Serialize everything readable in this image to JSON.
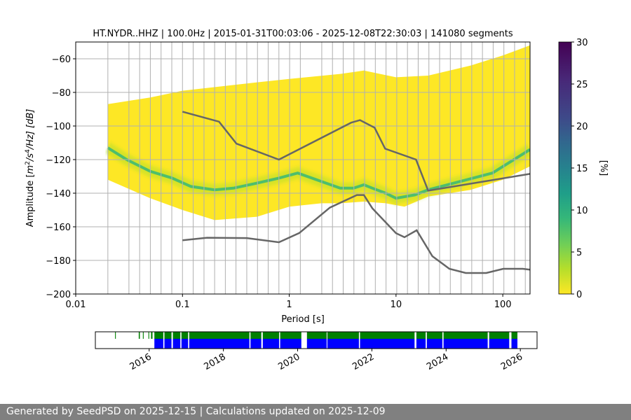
{
  "chart_data": [
    {
      "type": "heatmap",
      "title": "HT.NYDR..HHZ | 100.0Hz | 2015-01-31T00:03:06 - 2025-12-08T22:30:03 | 141080 segments",
      "xlabel": "Period [s]",
      "ylabel_prefix": "Amplitude [",
      "ylabel_m": "m",
      "ylabel_exp2": "2",
      "ylabel_mid": "/s",
      "ylabel_exp4": "4",
      "ylabel_suffix": "/Hz] [dB]",
      "x_scale": "log",
      "xlim": [
        0.01,
        180
      ],
      "ylim": [
        -200,
        -50
      ],
      "x_ticks": [
        {
          "value": 0.01,
          "label": "0.01"
        },
        {
          "value": 0.1,
          "label": "0.1"
        },
        {
          "value": 1,
          "label": "1"
        },
        {
          "value": 10,
          "label": "10"
        },
        {
          "value": 100,
          "label": "100"
        }
      ],
      "y_ticks": [
        {
          "value": -60,
          "label": "−60"
        },
        {
          "value": -80,
          "label": "−80"
        },
        {
          "value": -100,
          "label": "−100"
        },
        {
          "value": -120,
          "label": "−120"
        },
        {
          "value": -140,
          "label": "−140"
        },
        {
          "value": -160,
          "label": "−160"
        },
        {
          "value": -180,
          "label": "−180"
        },
        {
          "value": -200,
          "label": "−200"
        }
      ],
      "grid": true,
      "period_gridlines": [
        0.02,
        0.0315,
        0.0397,
        0.05,
        0.063,
        0.0794,
        0.1,
        0.126,
        0.159,
        0.2,
        0.252,
        0.317,
        0.4,
        0.504,
        0.635,
        0.8,
        1.008,
        1.27,
        2.016,
        2.54,
        3.2,
        4.032,
        5.08,
        6.4,
        8.064,
        10.16,
        12.8,
        16.13,
        20.32,
        25.6,
        32.26,
        40.64,
        51.2,
        64.51,
        81.27,
        102.4,
        129,
        162.5
      ],
      "psd_distribution": {
        "period_range": [
          0.02,
          180
        ],
        "mode": [
          [
            0.02,
            -113
          ],
          [
            0.03,
            -120
          ],
          [
            0.05,
            -127
          ],
          [
            0.08,
            -131
          ],
          [
            0.12,
            -136
          ],
          [
            0.2,
            -138
          ],
          [
            0.3,
            -137
          ],
          [
            0.5,
            -134
          ],
          [
            0.8,
            -131
          ],
          [
            1.2,
            -128
          ],
          [
            2,
            -133
          ],
          [
            3,
            -137
          ],
          [
            4,
            -137
          ],
          [
            5,
            -135
          ],
          [
            6,
            -137
          ],
          [
            8,
            -140
          ],
          [
            10,
            -143
          ],
          [
            15,
            -141
          ],
          [
            20,
            -138
          ],
          [
            40,
            -133
          ],
          [
            80,
            -128
          ],
          [
            180,
            -114
          ]
        ],
        "upper_edge": [
          [
            0.02,
            -87
          ],
          [
            0.05,
            -83
          ],
          [
            0.1,
            -79
          ],
          [
            0.5,
            -74
          ],
          [
            1,
            -72
          ],
          [
            3,
            -69
          ],
          [
            5,
            -67
          ],
          [
            10,
            -71
          ],
          [
            20,
            -70
          ],
          [
            50,
            -64
          ],
          [
            100,
            -58
          ],
          [
            180,
            -52
          ]
        ],
        "lower_edge": [
          [
            0.02,
            -132
          ],
          [
            0.05,
            -143
          ],
          [
            0.1,
            -150
          ],
          [
            0.2,
            -156
          ],
          [
            0.5,
            -154
          ],
          [
            1,
            -148
          ],
          [
            2,
            -146
          ],
          [
            3,
            -146
          ],
          [
            5,
            -145
          ],
          [
            8,
            -146
          ],
          [
            12,
            -148
          ],
          [
            20,
            -142
          ],
          [
            50,
            -138
          ],
          [
            100,
            -132
          ],
          [
            180,
            -124
          ]
        ]
      },
      "series": [
        {
          "name": "new high noise model",
          "color": "#666666",
          "x": [
            0.1,
            0.22,
            0.32,
            0.8,
            3.8,
            4.6,
            6.3,
            7.9,
            15.4,
            20,
            180
          ],
          "y": [
            -91.5,
            -97.4,
            -110.5,
            -120,
            -98,
            -96.5,
            -101,
            -113.5,
            -120,
            -138.5,
            -128.5
          ]
        },
        {
          "name": "new low noise model",
          "color": "#666666",
          "x": [
            0.1,
            0.17,
            0.4,
            0.8,
            1.24,
            2.4,
            4.3,
            5.0,
            6.0,
            10,
            12,
            15.6,
            21.9,
            31.6,
            45,
            70,
            101,
            154,
            180
          ],
          "y": [
            -168,
            -166.5,
            -166.7,
            -169.2,
            -163.7,
            -148.6,
            -141.1,
            -141.1,
            -149,
            -163.8,
            -166.2,
            -162.1,
            -177.5,
            -185,
            -187.5,
            -187.5,
            -185,
            -185,
            -185.5
          ]
        }
      ],
      "colorbar": {
        "label": "[%]",
        "range": [
          0,
          30
        ],
        "colormap": "viridis",
        "ticks": [
          {
            "value": 0,
            "label": "0"
          },
          {
            "value": 5,
            "label": "5"
          },
          {
            "value": 10,
            "label": "10"
          },
          {
            "value": 15,
            "label": "15"
          },
          {
            "value": 20,
            "label": "20"
          },
          {
            "value": 25,
            "label": "25"
          },
          {
            "value": 30,
            "label": "30"
          }
        ]
      }
    },
    {
      "type": "data-coverage-timeline",
      "x_range_years": [
        2014.55,
        2026.45
      ],
      "x_ticks": [
        {
          "value": 2016,
          "label": "2016"
        },
        {
          "value": 2018,
          "label": "2018"
        },
        {
          "value": 2020,
          "label": "2020"
        },
        {
          "value": 2022,
          "label": "2022"
        },
        {
          "value": 2024,
          "label": "2024"
        },
        {
          "value": 2026,
          "label": "2026"
        }
      ],
      "series": [
        {
          "name": "waveform data",
          "color": "#008000",
          "intervals": [
            [
              2015.08,
              2015.1
            ],
            [
              2015.72,
              2015.75
            ],
            [
              2015.83,
              2015.85
            ],
            [
              2015.98,
              2016.0
            ],
            [
              2016.05,
              2016.09
            ],
            [
              2016.14,
              2016.38
            ],
            [
              2016.41,
              2016.6
            ],
            [
              2016.64,
              2016.84
            ],
            [
              2016.87,
              2017.05
            ],
            [
              2017.08,
              2018.7
            ],
            [
              2018.73,
              2019.02
            ],
            [
              2019.06,
              2019.5
            ],
            [
              2019.53,
              2020.1
            ],
            [
              2020.25,
              2020.78
            ],
            [
              2020.8,
              2021.65
            ],
            [
              2021.68,
              2023.15
            ],
            [
              2023.2,
              2023.45
            ],
            [
              2023.48,
              2023.9
            ],
            [
              2023.93,
              2025.12
            ],
            [
              2025.16,
              2025.7
            ],
            [
              2025.76,
              2025.92
            ]
          ]
        },
        {
          "name": "PSD data",
          "color": "#0000ff",
          "intervals": [
            [
              2016.14,
              2016.38
            ],
            [
              2016.41,
              2016.6
            ],
            [
              2016.64,
              2016.84
            ],
            [
              2016.87,
              2017.05
            ],
            [
              2017.08,
              2018.7
            ],
            [
              2018.73,
              2019.02
            ],
            [
              2019.06,
              2019.5
            ],
            [
              2019.53,
              2020.1
            ],
            [
              2020.25,
              2020.78
            ],
            [
              2020.8,
              2021.65
            ],
            [
              2021.68,
              2023.15
            ],
            [
              2023.2,
              2023.45
            ],
            [
              2023.48,
              2023.9
            ],
            [
              2023.93,
              2025.12
            ],
            [
              2025.16,
              2025.7
            ],
            [
              2025.76,
              2025.92
            ]
          ]
        }
      ]
    }
  ],
  "footer": {
    "text": "Generated by SeedPSD on 2025-12-15 | Calculations updated on 2025-12-09"
  }
}
